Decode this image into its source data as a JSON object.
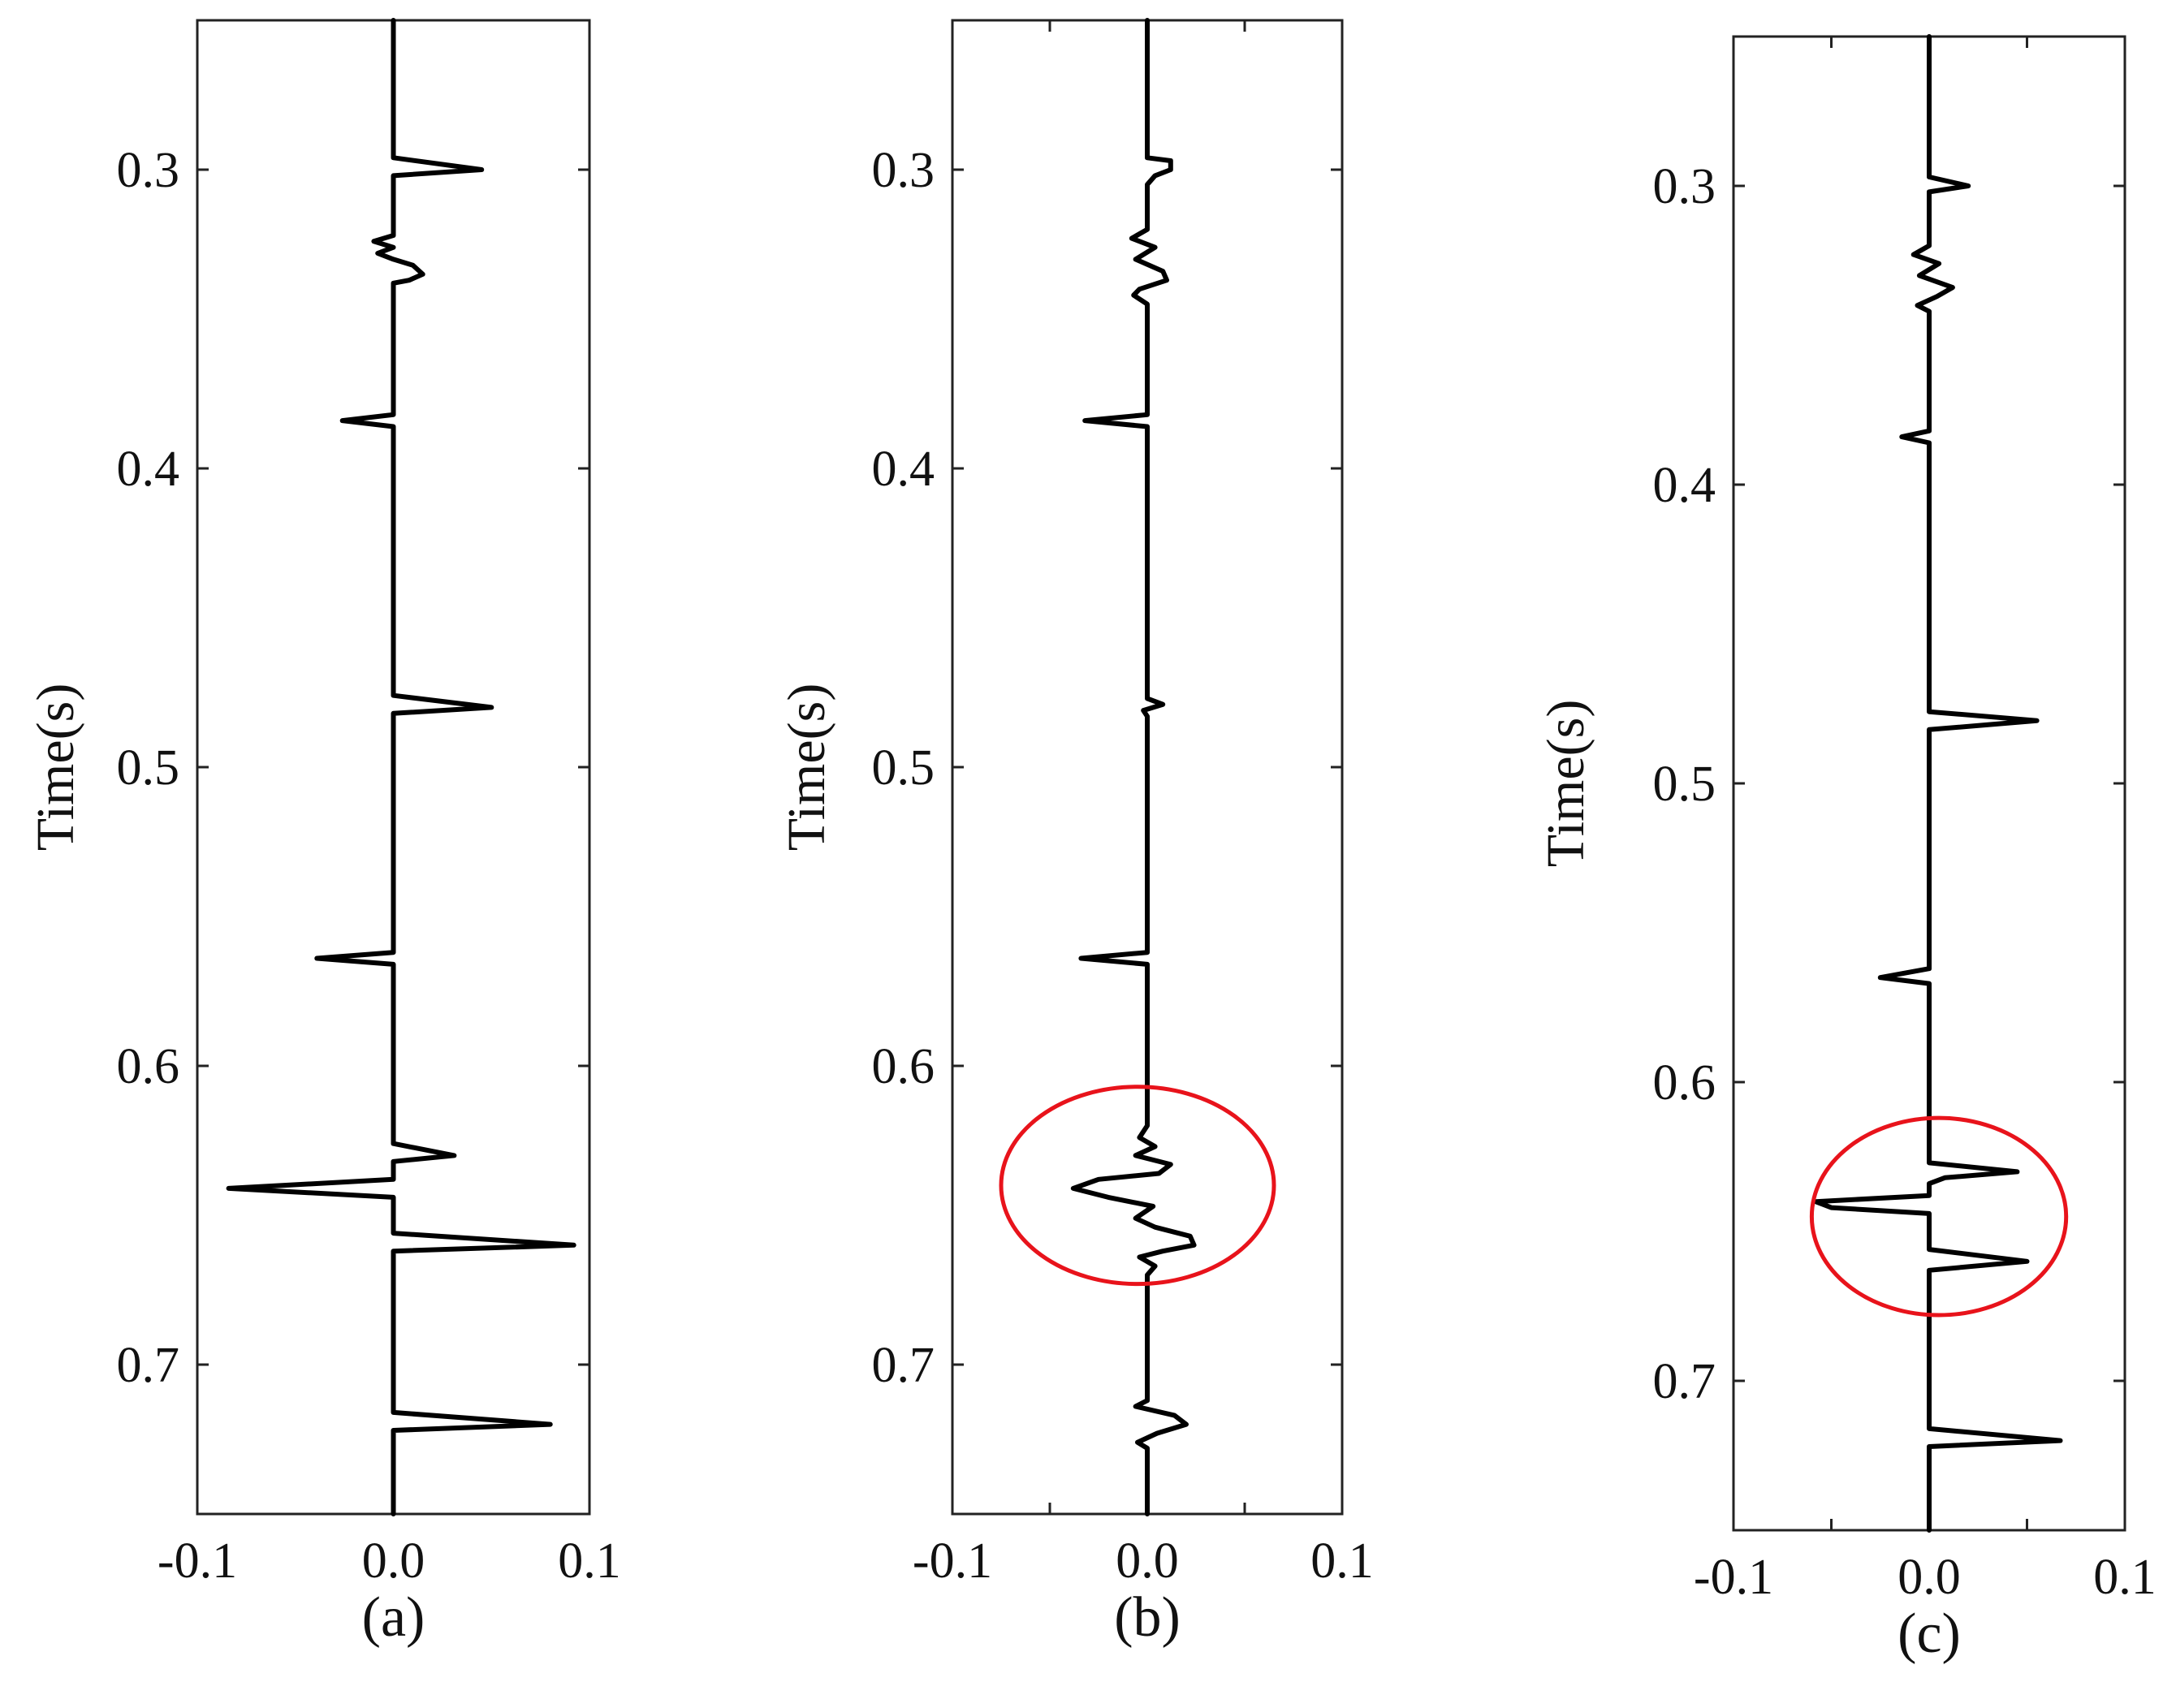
{
  "chart_data": [
    {
      "type": "line",
      "panel": "(a)",
      "caption": "(a)",
      "ylabel": "Time(s)",
      "xlabel": "",
      "xlim": [
        -0.1,
        0.1
      ],
      "ylim": [
        0.25,
        0.75
      ],
      "y_inverted": true,
      "xticks": [
        -0.1,
        0.0,
        0.1
      ],
      "xtick_labels": [
        "-0.1",
        "0.0",
        "0.1"
      ],
      "yticks": [
        0.3,
        0.4,
        0.5,
        0.6,
        0.7
      ],
      "ytick_labels": [
        "0.3",
        "0.4",
        "0.5",
        "0.6",
        "0.7"
      ],
      "grid": false,
      "series": [
        {
          "points": [
            [
              0,
              0.25
            ],
            [
              0,
              0.296
            ],
            [
              0.045,
              0.3
            ],
            [
              0,
              0.302
            ],
            [
              0,
              0.322
            ],
            [
              -0.01,
              0.324
            ],
            [
              0,
              0.326
            ],
            [
              -0.008,
              0.328
            ],
            [
              0,
              0.33
            ],
            [
              0.01,
              0.332
            ],
            [
              0.015,
              0.335
            ],
            [
              0.008,
              0.337
            ],
            [
              0,
              0.338
            ],
            [
              0,
              0.382
            ],
            [
              -0.026,
              0.384
            ],
            [
              0,
              0.386
            ],
            [
              0,
              0.476
            ],
            [
              0.05,
              0.48
            ],
            [
              0,
              0.482
            ],
            [
              0,
              0.562
            ],
            [
              -0.039,
              0.564
            ],
            [
              0,
              0.566
            ],
            [
              0,
              0.626
            ],
            [
              0.031,
              0.63
            ],
            [
              0,
              0.632
            ],
            [
              0,
              0.638
            ],
            [
              -0.084,
              0.641
            ],
            [
              0,
              0.644
            ],
            [
              0,
              0.656
            ],
            [
              0.092,
              0.66
            ],
            [
              0,
              0.662
            ],
            [
              0,
              0.716
            ],
            [
              0.08,
              0.72
            ],
            [
              0,
              0.722
            ],
            [
              0,
              0.75
            ]
          ]
        }
      ]
    },
    {
      "type": "line",
      "panel": "(b)",
      "caption": "(b)",
      "ylabel": "Time(s)",
      "xlabel": "",
      "xlim": [
        -0.1,
        0.1
      ],
      "ylim": [
        0.25,
        0.75
      ],
      "y_inverted": true,
      "xticks": [
        -0.1,
        -0.05,
        0.0,
        0.05,
        0.1
      ],
      "xtick_labels": [
        "-0.1",
        "",
        "0.0",
        "",
        "0.1"
      ],
      "yticks": [
        0.3,
        0.4,
        0.5,
        0.6,
        0.7
      ],
      "ytick_labels": [
        "0.3",
        "0.4",
        "0.5",
        "0.6",
        "0.7"
      ],
      "grid": false,
      "highlight_ellipse": {
        "center": [
          -0.005,
          0.64
        ],
        "radii": [
          0.07,
          0.033
        ]
      },
      "series": [
        {
          "points": [
            [
              0,
              0.25
            ],
            [
              0,
              0.296
            ],
            [
              0.012,
              0.297
            ],
            [
              0.012,
              0.3
            ],
            [
              0.004,
              0.302
            ],
            [
              0,
              0.305
            ],
            [
              0,
              0.32
            ],
            [
              -0.008,
              0.323
            ],
            [
              0.004,
              0.326
            ],
            [
              -0.006,
              0.33
            ],
            [
              0.008,
              0.334
            ],
            [
              0.01,
              0.337
            ],
            [
              -0.004,
              0.34
            ],
            [
              -0.007,
              0.342
            ],
            [
              0,
              0.345
            ],
            [
              0,
              0.382
            ],
            [
              -0.032,
              0.384
            ],
            [
              0,
              0.386
            ],
            [
              0,
              0.477
            ],
            [
              0.008,
              0.479
            ],
            [
              -0.002,
              0.481
            ],
            [
              0,
              0.483
            ],
            [
              0,
              0.562
            ],
            [
              -0.034,
              0.564
            ],
            [
              0,
              0.566
            ],
            [
              0,
              0.62
            ],
            [
              -0.004,
              0.624
            ],
            [
              0.004,
              0.627
            ],
            [
              -0.006,
              0.63
            ],
            [
              0.012,
              0.633
            ],
            [
              0.006,
              0.636
            ],
            [
              -0.025,
              0.638
            ],
            [
              -0.038,
              0.641
            ],
            [
              -0.02,
              0.644
            ],
            [
              0.003,
              0.647
            ],
            [
              -0.006,
              0.651
            ],
            [
              0.004,
              0.654
            ],
            [
              0.022,
              0.657
            ],
            [
              0.024,
              0.66
            ],
            [
              0.008,
              0.662
            ],
            [
              -0.004,
              0.664
            ],
            [
              0.004,
              0.667
            ],
            [
              0,
              0.67
            ],
            [
              0,
              0.712
            ],
            [
              -0.006,
              0.714
            ],
            [
              0.014,
              0.717
            ],
            [
              0.02,
              0.72
            ],
            [
              0.005,
              0.723
            ],
            [
              -0.005,
              0.726
            ],
            [
              0,
              0.728
            ],
            [
              0,
              0.75
            ]
          ]
        }
      ]
    },
    {
      "type": "line",
      "panel": "(c)",
      "caption": "(c)",
      "ylabel": "Time(s)",
      "xlabel": "",
      "xlim": [
        -0.1,
        0.1
      ],
      "ylim": [
        0.25,
        0.75
      ],
      "y_inverted": true,
      "xticks": [
        -0.1,
        -0.05,
        0.0,
        0.05,
        0.1
      ],
      "xtick_labels": [
        "-0.1",
        "",
        "0.0",
        "",
        "0.1"
      ],
      "yticks": [
        0.3,
        0.4,
        0.5,
        0.6,
        0.7
      ],
      "ytick_labels": [
        "0.3",
        "0.4",
        "0.5",
        "0.6",
        "0.7"
      ],
      "grid": false,
      "highlight_ellipse": {
        "center": [
          0.005,
          0.645
        ],
        "radii": [
          0.065,
          0.033
        ]
      },
      "series": [
        {
          "points": [
            [
              0,
              0.25
            ],
            [
              0,
              0.297
            ],
            [
              0.02,
              0.3
            ],
            [
              0,
              0.302
            ],
            [
              0,
              0.32
            ],
            [
              -0.008,
              0.323
            ],
            [
              0.005,
              0.326
            ],
            [
              -0.005,
              0.33
            ],
            [
              0.012,
              0.334
            ],
            [
              0.004,
              0.337
            ],
            [
              -0.006,
              0.34
            ],
            [
              0,
              0.342
            ],
            [
              0,
              0.382
            ],
            [
              -0.014,
              0.384
            ],
            [
              0,
              0.386
            ],
            [
              0,
              0.476
            ],
            [
              0.055,
              0.479
            ],
            [
              0,
              0.482
            ],
            [
              0,
              0.562
            ],
            [
              -0.025,
              0.565
            ],
            [
              0,
              0.567
            ],
            [
              0,
              0.627
            ],
            [
              0.045,
              0.63
            ],
            [
              0.008,
              0.632
            ],
            [
              0,
              0.634
            ],
            [
              0,
              0.638
            ],
            [
              -0.058,
              0.64
            ],
            [
              -0.05,
              0.642
            ],
            [
              0,
              0.644
            ],
            [
              0,
              0.656
            ],
            [
              0.05,
              0.66
            ],
            [
              0,
              0.663
            ],
            [
              0,
              0.716
            ],
            [
              0.067,
              0.72
            ],
            [
              0,
              0.722
            ],
            [
              0,
              0.75
            ]
          ]
        }
      ]
    }
  ]
}
